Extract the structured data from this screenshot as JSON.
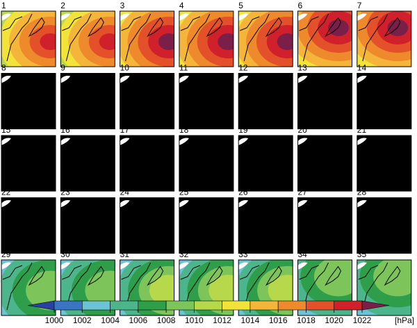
{
  "panels": [
    {
      "label": "1"
    },
    {
      "label": "2"
    },
    {
      "label": "3"
    },
    {
      "label": "4"
    },
    {
      "label": "5"
    },
    {
      "label": "6"
    },
    {
      "label": "7"
    },
    {
      "label": "8"
    },
    {
      "label": "9"
    },
    {
      "label": "10"
    },
    {
      "label": "11"
    },
    {
      "label": "12"
    },
    {
      "label": "13"
    },
    {
      "label": "14"
    },
    {
      "label": "15"
    },
    {
      "label": "16"
    },
    {
      "label": "17"
    },
    {
      "label": "18"
    },
    {
      "label": "19"
    },
    {
      "label": "20"
    },
    {
      "label": "21"
    },
    {
      "label": "22"
    },
    {
      "label": "23"
    },
    {
      "label": "24"
    },
    {
      "label": "25"
    },
    {
      "label": "26"
    },
    {
      "label": "27"
    },
    {
      "label": "28"
    },
    {
      "label": "29"
    },
    {
      "label": "30"
    },
    {
      "label": "31"
    },
    {
      "label": "32"
    },
    {
      "label": "33"
    },
    {
      "label": "34"
    },
    {
      "label": "35"
    }
  ],
  "colorbar": {
    "ticks": [
      1000,
      1002,
      1004,
      1006,
      1008,
      1010,
      1012,
      1014,
      1016,
      1018,
      1020,
      1022
    ],
    "unit": "[hPa]",
    "colors": [
      "#2a3fa0",
      "#3a75c4",
      "#6cc3d6",
      "#4db58c",
      "#2e9e4a",
      "#7dc45a",
      "#b6d84a",
      "#f2e23a",
      "#f5b53a",
      "#ee8a2c",
      "#e4502a",
      "#d0202c",
      "#7a1e4a"
    ]
  }
}
